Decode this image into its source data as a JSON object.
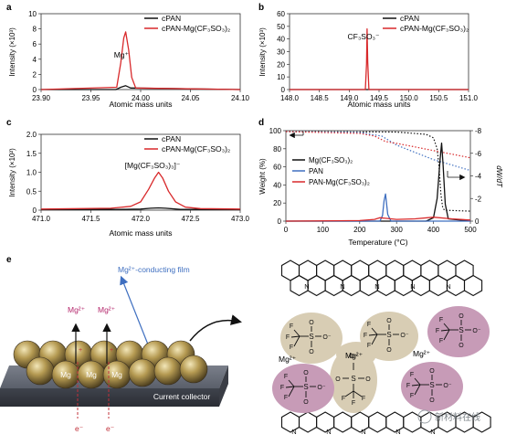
{
  "panels": {
    "a": {
      "letter": "a",
      "ylabel": "Intensity (×10³)",
      "xlabel": "Atomic mass units",
      "annotation": "Mg⁺"
    },
    "b": {
      "letter": "b",
      "ylabel": "Intensity (×10³)",
      "xlabel": "Atomic mass units",
      "annotation": "CF₃SO₃⁻"
    },
    "c": {
      "letter": "c",
      "ylabel": "Intensity (×10²)",
      "xlabel": "Atomic mass units",
      "annotation": "[Mg(CF₃SO₃)₃]⁻"
    },
    "d": {
      "letter": "d",
      "ylabel": "Weight (%)",
      "ylabel_right": "dW/dT",
      "xlabel": "Temperature (°C)"
    },
    "e": {
      "letter": "e",
      "film_label": "Mg²⁺-conducting film",
      "collector_label": "Current collector",
      "ion_label": "Mg²⁺",
      "particle_label": "Mg",
      "electron_label": "e⁻",
      "watermark": "新材料在线"
    }
  },
  "legend_ac": [
    "cPAN",
    "cPAN-Mg(CF₃SO₃)₂"
  ],
  "legend_d": [
    "Mg(CF₃SO₃)₂",
    "PAN",
    "PAN-Mg(CF₃SO₃)₂"
  ],
  "structure": {
    "sulfonate": {
      "s": "S",
      "o": "O",
      "o_minus": "O⁻",
      "c": "C",
      "f": "F"
    },
    "mg_center": "Mg²⁺",
    "mg_left": "Mg²⁺",
    "mg_right": "Mg²⁺",
    "n": "N"
  },
  "colors": {
    "cpan": "#111111",
    "cpan_mg": "#d8292b",
    "pan": "#3f6fc0",
    "mg_salt": "#111111",
    "tan_blob": "#d8cdb4",
    "purple_blob": "#c79bb7",
    "particle": "#b59a52"
  },
  "chart_data": [
    {
      "panel": "a",
      "type": "line",
      "xlim": [
        23.9,
        24.1
      ],
      "ylim": [
        0,
        10
      ],
      "xticks": [
        "23.90",
        "23.95",
        "24.00",
        "24.05",
        "24.10"
      ],
      "yticks": [
        "0",
        "2",
        "4",
        "6",
        "8",
        "10"
      ],
      "series": [
        {
          "name": "cPAN",
          "x": [
            23.9,
            23.975,
            23.98,
            23.985,
            23.99,
            24.1
          ],
          "y": [
            0,
            0,
            0.3,
            0.5,
            0.2,
            0
          ]
        },
        {
          "name": "cPAN-Mg(CF₃SO₃)₂",
          "x": [
            23.9,
            23.976,
            23.98,
            23.983,
            23.985,
            23.988,
            23.991,
            23.995,
            24.1
          ],
          "y": [
            0,
            0.3,
            3.5,
            6.8,
            7.6,
            5.2,
            1.6,
            0.2,
            0
          ]
        }
      ]
    },
    {
      "panel": "b",
      "type": "line",
      "xlim": [
        148.0,
        151.0
      ],
      "ylim": [
        0,
        60
      ],
      "xticks": [
        "148.0",
        "148.5",
        "149.0",
        "149.5",
        "150.0",
        "150.5",
        "151.0"
      ],
      "yticks": [
        "0",
        "10",
        "20",
        "30",
        "40",
        "50",
        "60"
      ],
      "series": [
        {
          "name": "cPAN",
          "x": [
            148.0,
            151.0
          ],
          "y": [
            0,
            0
          ]
        },
        {
          "name": "cPAN-Mg(CF₃SO₃)₂",
          "x": [
            148.0,
            149.27,
            149.29,
            149.3,
            149.31,
            149.33,
            151.0
          ],
          "y": [
            0,
            0,
            20,
            48,
            22,
            0,
            0
          ]
        }
      ]
    },
    {
      "panel": "c",
      "type": "line",
      "xlim": [
        471.0,
        473.0
      ],
      "ylim": [
        0,
        2.0
      ],
      "xticks": [
        "471.0",
        "471.5",
        "472.0",
        "472.5",
        "473.0"
      ],
      "yticks": [
        "0",
        "0.5",
        "1.0",
        "1.5",
        "2.0"
      ],
      "series": [
        {
          "name": "cPAN",
          "x": [
            471.0,
            471.8,
            472.0,
            472.1,
            472.18,
            472.25,
            472.4,
            473.0
          ],
          "y": [
            0.02,
            0.02,
            0.03,
            0.05,
            0.06,
            0.05,
            0.02,
            0.02
          ]
        },
        {
          "name": "cPAN-Mg(CF₃SO₃)₂",
          "x": [
            471.0,
            471.7,
            471.9,
            472.0,
            472.08,
            472.14,
            472.18,
            472.22,
            472.28,
            472.35,
            472.45,
            472.6,
            473.0
          ],
          "y": [
            0.03,
            0.05,
            0.1,
            0.22,
            0.55,
            0.85,
            1.0,
            0.85,
            0.5,
            0.22,
            0.08,
            0.04,
            0.03
          ]
        }
      ]
    },
    {
      "panel": "d",
      "type": "line",
      "xlim": [
        0,
        500
      ],
      "ylim": [
        0,
        100
      ],
      "y2lim": [
        0,
        -8
      ],
      "xticks": [
        "0",
        "100",
        "200",
        "300",
        "400",
        "500"
      ],
      "yticks": [
        "0",
        "20",
        "40",
        "60",
        "80",
        "100"
      ],
      "y2ticks": [
        "0",
        "-2",
        "-4",
        "-6",
        "-8"
      ],
      "series": [
        {
          "name": "Mg(CF₃SO₃)₂ weight",
          "axis": "left",
          "style": "dotted",
          "x": [
            0,
            300,
            380,
            400,
            410,
            415,
            420,
            425,
            430,
            500
          ],
          "y": [
            99,
            98.5,
            96,
            92,
            80,
            60,
            30,
            15,
            12,
            11
          ]
        },
        {
          "name": "PAN weight",
          "axis": "left",
          "style": "dotted",
          "x": [
            0,
            200,
            260,
            300,
            350,
            400,
            450,
            500
          ],
          "y": [
            99,
            98,
            94,
            84,
            76,
            68,
            62,
            56
          ]
        },
        {
          "name": "PAN-Mg(CF₃SO₃)₂ weight",
          "axis": "left",
          "style": "dotted",
          "x": [
            0,
            200,
            240,
            270,
            300,
            350,
            400,
            450,
            500
          ],
          "y": [
            99,
            97,
            94,
            88,
            86,
            82,
            78,
            74,
            70
          ]
        },
        {
          "name": "Mg(CF₃SO₃)₂",
          "axis": "right",
          "style": "solid",
          "x": [
            0,
            380,
            400,
            410,
            418,
            422,
            426,
            432,
            440,
            500
          ],
          "y": [
            0,
            0,
            -0.3,
            -2,
            -5.5,
            -6.9,
            -5,
            -1.5,
            -0.2,
            0
          ]
        },
        {
          "name": "PAN",
          "axis": "right",
          "style": "solid",
          "x": [
            0,
            255,
            262,
            266,
            270,
            276,
            285,
            500
          ],
          "y": [
            0,
            0,
            -0.5,
            -1.8,
            -2.4,
            -0.6,
            0,
            0
          ]
        },
        {
          "name": "PAN-Mg(CF₃SO₃)₂",
          "axis": "right",
          "style": "solid",
          "x": [
            0,
            200,
            240,
            255,
            270,
            300,
            350,
            400,
            450,
            500
          ],
          "y": [
            0,
            -0.05,
            -0.15,
            -0.3,
            -0.25,
            -0.15,
            -0.2,
            -0.35,
            -0.2,
            -0.1
          ]
        }
      ]
    }
  ]
}
